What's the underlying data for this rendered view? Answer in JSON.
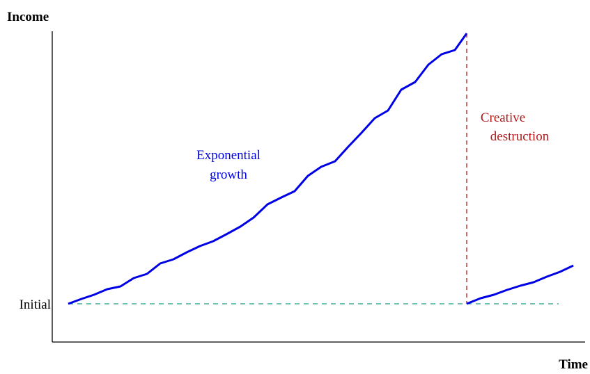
{
  "chart_data": {
    "type": "line",
    "y_label": "Income",
    "x_label": "Time",
    "xlim": [
      0,
      765
    ],
    "ylim": [
      0,
      447
    ],
    "yticks": [
      {
        "value": 55,
        "label": "Initial"
      }
    ],
    "x": [
      23,
      42,
      60,
      79,
      98,
      117,
      136,
      155,
      174,
      193,
      212,
      231,
      250,
      270,
      289,
      309,
      329,
      348,
      367,
      386,
      406,
      425,
      444,
      463,
      482,
      501,
      521,
      540,
      559,
      578,
      595,
      595,
      595,
      615,
      634,
      653,
      672,
      691,
      710,
      729,
      748
    ],
    "series": [
      {
        "color": "#0000e6",
        "values": [
          55,
          62,
          68,
          76,
          80,
          92,
          98,
          113,
          119,
          129,
          138,
          145,
          155,
          166,
          179,
          198,
          208,
          217,
          239,
          252,
          260,
          281,
          301,
          322,
          333,
          363,
          374,
          399,
          414,
          420,
          444,
          null,
          55,
          63,
          68,
          75,
          81,
          86,
          94,
          101,
          110
        ]
      }
    ],
    "annotations": [
      {
        "lines": [
          "Exponential",
          "growth"
        ],
        "color": "#0000e6"
      },
      {
        "lines": [
          "Creative",
          "destruction"
        ],
        "color": "#b01c1c"
      }
    ],
    "baseline_color": "#1a9a80",
    "drop_color": "#b01c1c"
  }
}
